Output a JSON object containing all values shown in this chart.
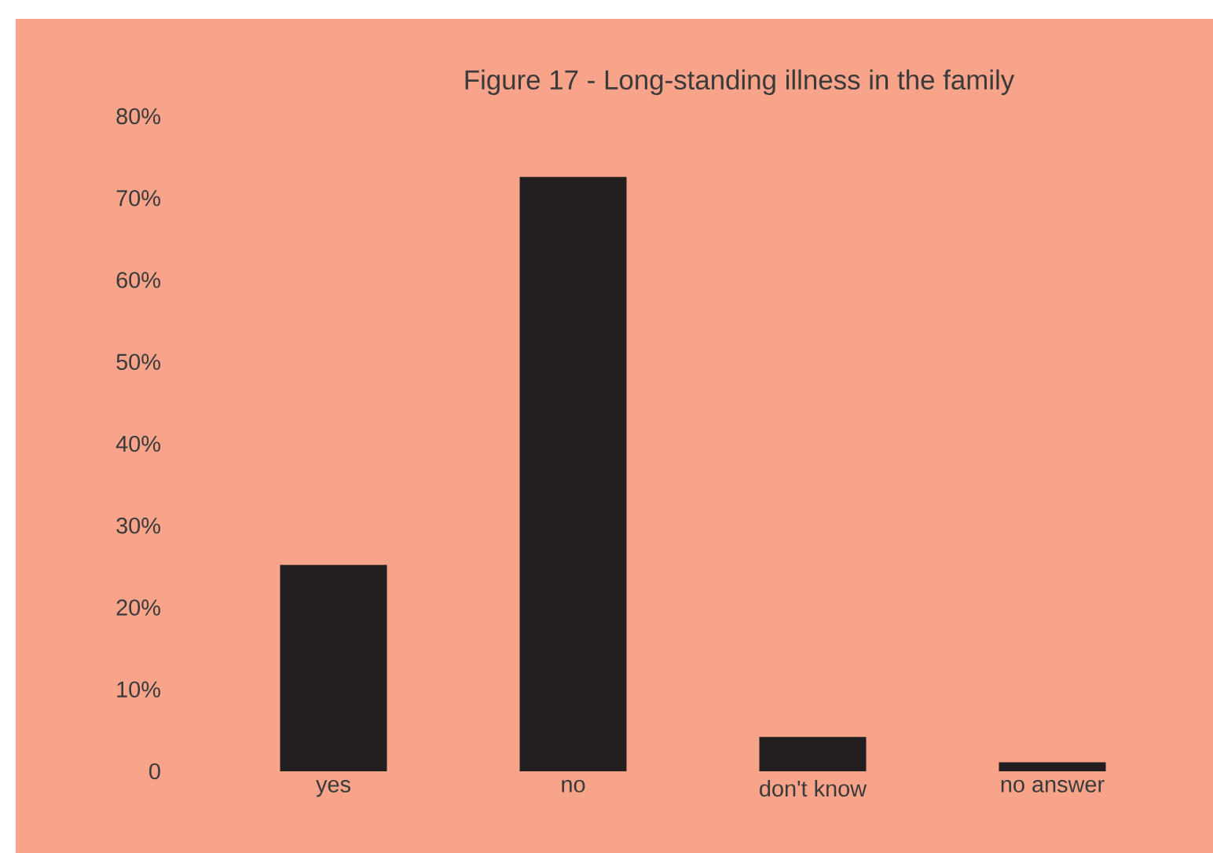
{
  "chart_data": {
    "type": "bar",
    "title": "Figure 17 - Long-standing illness in the family",
    "categories": [
      "yes",
      "no",
      "don't know",
      "no answer"
    ],
    "values": [
      25.2,
      72.6,
      4.2,
      1.1
    ],
    "color": "#231f20",
    "ylim": [
      0,
      80
    ],
    "yticks": [
      {
        "value": 0,
        "label": "0"
      },
      {
        "value": 10,
        "label": "10%"
      },
      {
        "value": 20,
        "label": "20%"
      },
      {
        "value": 30,
        "label": "30%"
      },
      {
        "value": 40,
        "label": "40%"
      },
      {
        "value": 50,
        "label": "50%"
      },
      {
        "value": 60,
        "label": "60%"
      },
      {
        "value": 70,
        "label": "70%"
      },
      {
        "value": 80,
        "label": "80%"
      }
    ],
    "grid": false
  }
}
